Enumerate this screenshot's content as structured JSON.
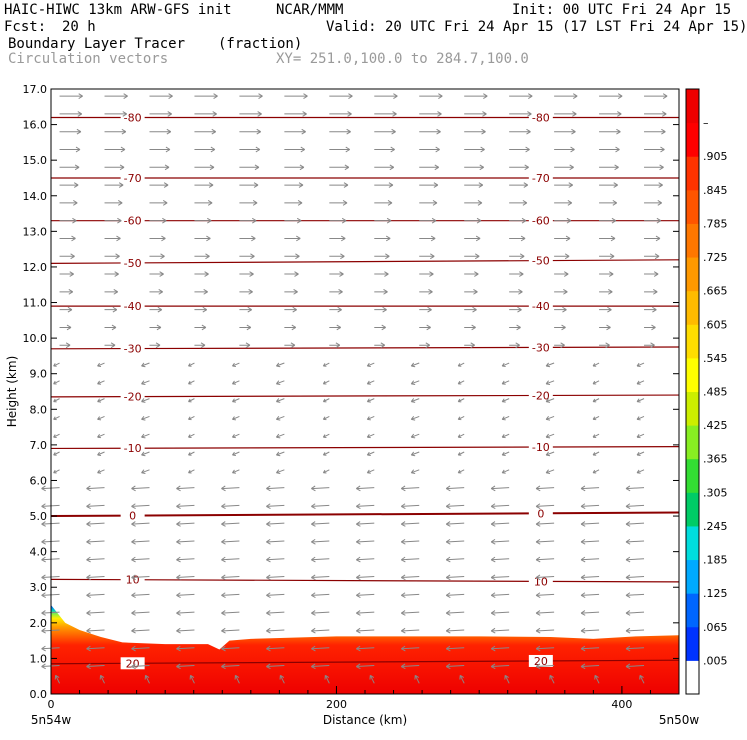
{
  "header": {
    "model": "HAIC-HIWC 13km ARW-GFS init",
    "org": "NCAR/MMM",
    "init": "Init: 00 UTC Fri 24 Apr 15",
    "fcst_label": "Fcst:",
    "fcst_value": "20 h",
    "valid": "Valid: 20 UTC Fri 24 Apr 15 (17 LST Fri 24 Apr 15)",
    "field1": "Boundary Layer Tracer",
    "field1_units": "(fraction)",
    "field2": "Circulation vectors",
    "xsec": "XY= 251.0,100.0 to 284.7,100.0"
  },
  "chart_data": {
    "type": "heatmap",
    "xlabel": "Distance (km)",
    "ylabel": "Height (km)",
    "xlim": [
      0,
      440
    ],
    "ylim": [
      0,
      17
    ],
    "x_ticks": [
      0,
      200,
      400
    ],
    "x_tick_labels": [
      "0",
      "200",
      "400"
    ],
    "y_ticks": [
      0,
      1,
      2,
      3,
      4,
      5,
      6,
      7,
      8,
      9,
      10,
      11,
      12,
      13,
      14,
      15,
      16,
      17
    ],
    "y_tick_labels": [
      "0.0",
      "1.0",
      "2.0",
      "3.0",
      "4.0",
      "5.0",
      "6.0",
      "7.0",
      "8.0",
      "9.0",
      "10.0",
      "11.0",
      "12.0",
      "13.0",
      "14.0",
      "15.0",
      "16.0",
      "17.0"
    ],
    "endpoint_labels": [
      "5n54w",
      "5n50w"
    ],
    "colorbar": {
      "labels": [
        ".005",
        ".065",
        ".125",
        ".185",
        ".245",
        ".305",
        ".365",
        ".425",
        ".485",
        ".545",
        ".605",
        ".665",
        ".725",
        ".785",
        ".845",
        ".905",
        "–"
      ],
      "colors": [
        "#ffffff",
        "#0033ff",
        "#0066ff",
        "#00aaff",
        "#00dddd",
        "#00cc66",
        "#33dd33",
        "#88ee22",
        "#ccee00",
        "#ffff00",
        "#ffdd00",
        "#ffbb00",
        "#ff9900",
        "#ff7700",
        "#ff5500",
        "#ff3300",
        "#ff0000",
        "#ee0000"
      ]
    },
    "tracer_top_km": [
      [
        0,
        2.5
      ],
      [
        10,
        2.0
      ],
      [
        20,
        1.8
      ],
      [
        35,
        1.6
      ],
      [
        50,
        1.45
      ],
      [
        80,
        1.4
      ],
      [
        110,
        1.4
      ],
      [
        118,
        1.25
      ],
      [
        125,
        1.5
      ],
      [
        140,
        1.55
      ],
      [
        200,
        1.62
      ],
      [
        300,
        1.62
      ],
      [
        350,
        1.6
      ],
      [
        380,
        1.55
      ],
      [
        410,
        1.62
      ],
      [
        440,
        1.65
      ]
    ],
    "isotherms": [
      {
        "value": 20,
        "heights": [
          0.85,
          0.95
        ]
      },
      {
        "value": 10,
        "heights": [
          3.22,
          3.15
        ]
      },
      {
        "value": 0,
        "heights": [
          5.0,
          5.1
        ]
      },
      {
        "value": -10,
        "heights": [
          6.9,
          6.95
        ]
      },
      {
        "value": -20,
        "heights": [
          8.35,
          8.4
        ]
      },
      {
        "value": -30,
        "heights": [
          9.7,
          9.75
        ]
      },
      {
        "value": -40,
        "heights": [
          10.9,
          10.9
        ]
      },
      {
        "value": -50,
        "heights": [
          12.1,
          12.2
        ]
      },
      {
        "value": -60,
        "heights": [
          13.3,
          13.3
        ]
      },
      {
        "value": -70,
        "heights": [
          14.5,
          14.5
        ]
      },
      {
        "value": -80,
        "heights": [
          16.2,
          16.2
        ]
      }
    ],
    "isotherm_labels": [
      "20",
      "10",
      "0",
      "-10",
      "-20",
      "-30",
      "-40",
      "-50",
      "-60",
      "-70",
      "-80"
    ],
    "wind_regimes": [
      {
        "from_km": 0,
        "to_km": 0.8,
        "dir": "up-left"
      },
      {
        "from_km": 0.8,
        "to_km": 6.0,
        "dir": "left"
      },
      {
        "from_km": 6.0,
        "to_km": 9.5,
        "dir": "weak-left"
      },
      {
        "from_km": 9.5,
        "to_km": 17.0,
        "dir": "right"
      }
    ]
  }
}
